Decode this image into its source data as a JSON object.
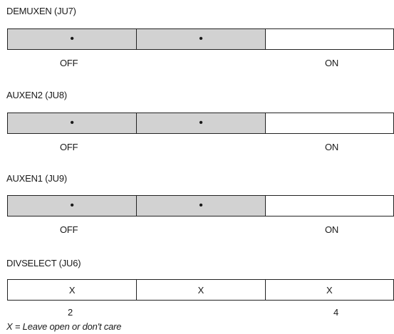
{
  "jumpers": [
    {
      "title": "DEMUXEN (JU7)",
      "cells": [
        {
          "mark": "•",
          "shaded": true
        },
        {
          "mark": "•",
          "shaded": true
        },
        {
          "mark": "",
          "shaded": false
        }
      ],
      "left_label": "OFF",
      "right_label": "ON"
    },
    {
      "title": "AUXEN2 (JU8)",
      "cells": [
        {
          "mark": "•",
          "shaded": true
        },
        {
          "mark": "•",
          "shaded": true
        },
        {
          "mark": "",
          "shaded": false
        }
      ],
      "left_label": "OFF",
      "right_label": "ON"
    },
    {
      "title": "AUXEN1 (JU9)",
      "cells": [
        {
          "mark": "•",
          "shaded": true
        },
        {
          "mark": "•",
          "shaded": true
        },
        {
          "mark": "",
          "shaded": false
        }
      ],
      "left_label": "OFF",
      "right_label": "ON"
    },
    {
      "title": "DIVSELECT (JU6)",
      "cells": [
        {
          "mark": "X",
          "shaded": false
        },
        {
          "mark": "X",
          "shaded": false
        },
        {
          "mark": "X",
          "shaded": false
        }
      ],
      "left_label": "2",
      "right_label": "4"
    }
  ],
  "footnote": "X = Leave open or don't care",
  "colors": {
    "shaded": "#d2d2d2",
    "border": "#222222"
  }
}
